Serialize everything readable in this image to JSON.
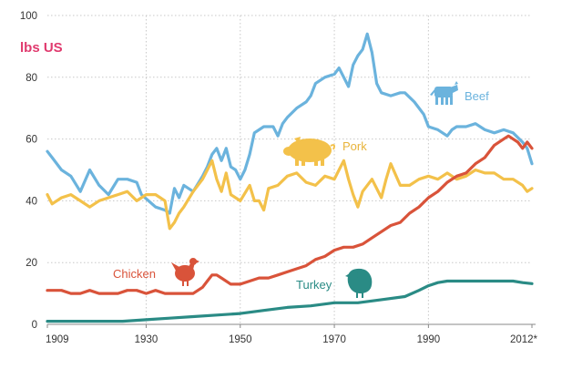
{
  "chart_data": {
    "type": "line",
    "unit_label": "lbs US",
    "ylim": [
      0,
      100
    ],
    "xlim": [
      1909,
      2012
    ],
    "yticks": [
      0,
      20,
      40,
      60,
      80,
      100
    ],
    "yticklabels": [
      "0",
      "20",
      "40",
      "60",
      "80",
      "100"
    ],
    "xticks": [
      1909,
      1930,
      1950,
      1970,
      1990,
      2012
    ],
    "xticklabels": [
      "1909",
      "1930",
      "1950",
      "1970",
      "1990",
      "2012*"
    ],
    "grid": "dotted",
    "series": [
      {
        "name": "Beef",
        "color": "#6bb3dd",
        "icon": "cow-icon",
        "x": [
          1909,
          1910,
          1912,
          1914,
          1916,
          1918,
          1920,
          1922,
          1924,
          1926,
          1928,
          1929,
          1932,
          1934,
          1935,
          1936,
          1937,
          1938,
          1940,
          1942,
          1943,
          1944,
          1945,
          1946,
          1947,
          1948,
          1949,
          1950,
          1951,
          1952,
          1953,
          1955,
          1957,
          1958,
          1959,
          1960,
          1962,
          1964,
          1965,
          1966,
          1968,
          1970,
          1971,
          1972,
          1973,
          1974,
          1975,
          1976,
          1977,
          1978,
          1979,
          1980,
          1982,
          1984,
          1985,
          1987,
          1989,
          1990,
          1992,
          1994,
          1995,
          1996,
          1998,
          2000,
          2002,
          2004,
          2006,
          2008,
          2010,
          2011,
          2012
        ],
        "values": [
          56,
          54,
          50,
          48,
          43,
          50,
          45,
          42,
          47,
          47,
          46,
          42,
          38,
          37,
          36,
          44,
          41,
          45,
          43,
          48,
          51,
          55,
          57,
          53,
          57,
          51,
          50,
          47,
          50,
          55,
          62,
          64,
          64,
          61,
          65,
          67,
          70,
          72,
          74,
          78,
          80,
          81,
          83,
          80,
          77,
          84,
          87,
          89,
          94,
          88,
          78,
          75,
          74,
          75,
          75,
          72,
          68,
          64,
          63,
          61,
          63,
          64,
          64,
          65,
          63,
          62,
          63,
          62,
          59,
          57,
          52
        ]
      },
      {
        "name": "Pork",
        "color": "#f3c14a",
        "icon": "pig-icon",
        "x": [
          1909,
          1910,
          1912,
          1914,
          1916,
          1918,
          1920,
          1922,
          1924,
          1926,
          1928,
          1930,
          1932,
          1933,
          1934,
          1935,
          1936,
          1937,
          1938,
          1940,
          1942,
          1943,
          1944,
          1945,
          1946,
          1947,
          1948,
          1950,
          1952,
          1953,
          1954,
          1955,
          1956,
          1958,
          1960,
          1962,
          1964,
          1966,
          1968,
          1970,
          1971,
          1972,
          1973,
          1974,
          1975,
          1976,
          1978,
          1980,
          1981,
          1982,
          1984,
          1986,
          1988,
          1990,
          1992,
          1994,
          1996,
          1998,
          2000,
          2002,
          2004,
          2006,
          2008,
          2010,
          2011,
          2012
        ],
        "values": [
          42,
          39,
          41,
          42,
          40,
          38,
          40,
          41,
          42,
          43,
          40,
          42,
          42,
          41,
          40,
          31,
          33,
          36,
          38,
          43,
          47,
          50,
          53,
          47,
          43,
          49,
          42,
          40,
          45,
          40,
          40,
          37,
          44,
          45,
          48,
          49,
          46,
          45,
          48,
          47,
          50,
          53,
          47,
          42,
          38,
          43,
          47,
          41,
          47,
          52,
          45,
          45,
          47,
          48,
          47,
          49,
          47,
          48,
          50,
          49,
          49,
          47,
          47,
          45,
          43,
          44
        ]
      },
      {
        "name": "Chicken",
        "color": "#d9533a",
        "icon": "hen-icon",
        "x": [
          1909,
          1912,
          1914,
          1916,
          1918,
          1920,
          1922,
          1924,
          1926,
          1928,
          1930,
          1932,
          1934,
          1936,
          1938,
          1940,
          1942,
          1943,
          1944,
          1945,
          1946,
          1948,
          1950,
          1952,
          1954,
          1956,
          1958,
          1960,
          1962,
          1964,
          1966,
          1968,
          1970,
          1972,
          1974,
          1976,
          1978,
          1980,
          1982,
          1984,
          1986,
          1988,
          1990,
          1992,
          1994,
          1996,
          1998,
          2000,
          2002,
          2004,
          2006,
          2007,
          2008,
          2009,
          2010,
          2011,
          2012
        ],
        "values": [
          11,
          11,
          10,
          10,
          11,
          10,
          10,
          10,
          11,
          11,
          10,
          11,
          10,
          10,
          10,
          10,
          12,
          14,
          16,
          16,
          15,
          13,
          13,
          14,
          15,
          15,
          16,
          17,
          18,
          19,
          21,
          22,
          24,
          25,
          25,
          26,
          28,
          30,
          32,
          33,
          36,
          38,
          41,
          43,
          46,
          48,
          49,
          52,
          54,
          58,
          60,
          61,
          60,
          59,
          57,
          59,
          57
        ]
      },
      {
        "name": "Turkey",
        "color": "#2a8b85",
        "icon": "turkey-icon",
        "x": [
          1909,
          1915,
          1920,
          1925,
          1930,
          1935,
          1940,
          1945,
          1950,
          1955,
          1960,
          1965,
          1970,
          1975,
          1980,
          1985,
          1988,
          1990,
          1992,
          1994,
          1996,
          1998,
          2000,
          2005,
          2008,
          2010,
          2012
        ],
        "values": [
          1,
          1,
          1,
          1,
          1.5,
          2,
          2.5,
          3,
          3.5,
          4.5,
          5.5,
          6,
          7,
          7,
          8,
          9,
          11,
          12.5,
          13.5,
          14,
          14,
          14,
          14,
          14,
          14,
          13.5,
          13.2
        ]
      }
    ]
  }
}
